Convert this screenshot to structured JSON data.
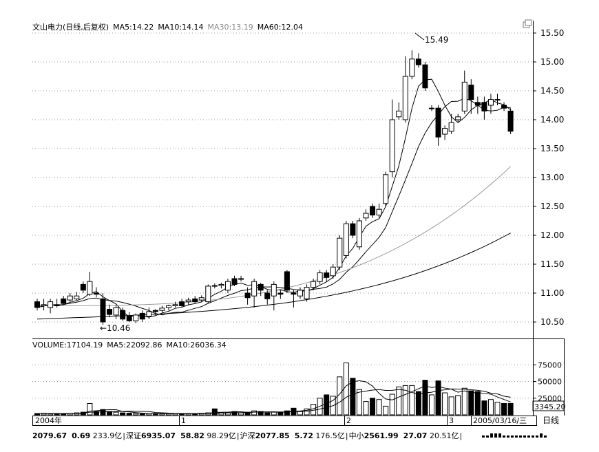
{
  "header": {
    "title": "文山电力(日线,后复权)",
    "ma5": "MA5:14.22",
    "ma10": "MA10:14.14",
    "ma30": "MA30:13.19",
    "ma60": "MA60:12.04"
  },
  "volume_header": {
    "volume": "VOLUME:17104.19",
    "ma5": "MA5:22092.86",
    "ma10": "MA10:26036.34"
  },
  "y_labels": [
    "15.50",
    "15.00",
    "14.50",
    "14.00",
    "13.50",
    "13.00",
    "12.50",
    "12.00",
    "11.50",
    "11.00",
    "10.50"
  ],
  "v_labels": [
    "75000",
    "50000",
    "25000"
  ],
  "v_current": "3345.20",
  "annotations": {
    "high": "15.49",
    "low": "←10.46"
  },
  "x_labels": [
    "2004年",
    "1",
    "2",
    "3",
    "2005/03/16/三"
  ],
  "period_label": "日线",
  "ticker": [
    {
      "a": "2079.67",
      "b": "0.69",
      "c": "233.9亿"
    },
    {
      "name": "深证",
      "a": "6935.07",
      "b": "58.82",
      "c": "98.29亿"
    },
    {
      "name": "沪深",
      "a": "2077.85",
      "b": "5.72",
      "c": "176.5亿"
    },
    {
      "name": "中小",
      "a": "2561.99",
      "b": "27.07",
      "c": "20.51亿"
    }
  ],
  "chart_data": {
    "type": "candlestick",
    "title": "文山电力(日线,后复权)",
    "ylim": [
      10.3,
      15.6
    ],
    "candles": [
      [
        10.85,
        10.75,
        10.9,
        10.7
      ],
      [
        10.78,
        10.8,
        10.9,
        10.7
      ],
      [
        10.75,
        10.85,
        10.9,
        10.65
      ],
      [
        10.8,
        10.78,
        10.9,
        10.75
      ],
      [
        10.9,
        10.82,
        10.95,
        10.8
      ],
      [
        10.88,
        10.95,
        11.0,
        10.85
      ],
      [
        10.9,
        10.95,
        11.02,
        10.88
      ],
      [
        11.15,
        11.05,
        11.2,
        11.0
      ],
      [
        10.98,
        11.2,
        11.37,
        10.95
      ],
      [
        11.0,
        10.98,
        11.1,
        10.93
      ],
      [
        10.9,
        10.5,
        11.0,
        10.45
      ],
      [
        10.72,
        10.63,
        10.8,
        10.58
      ],
      [
        10.62,
        10.75,
        10.8,
        10.55
      ],
      [
        10.7,
        10.55,
        10.75,
        10.52
      ],
      [
        10.6,
        10.52,
        10.67,
        10.5
      ],
      [
        10.52,
        10.62,
        10.65,
        10.48
      ],
      [
        10.65,
        10.55,
        10.7,
        10.5
      ],
      [
        10.6,
        10.68,
        10.75,
        10.55
      ],
      [
        10.7,
        10.68,
        10.72,
        10.62
      ],
      [
        10.7,
        10.74,
        10.78,
        10.65
      ],
      [
        10.75,
        10.78,
        10.8,
        10.7
      ],
      [
        10.78,
        10.8,
        10.85,
        10.75
      ],
      [
        10.85,
        10.78,
        10.9,
        10.75
      ],
      [
        10.85,
        10.88,
        10.92,
        10.8
      ],
      [
        10.9,
        10.85,
        10.95,
        10.82
      ],
      [
        10.88,
        10.92,
        10.96,
        10.85
      ],
      [
        10.85,
        11.12,
        11.15,
        10.82
      ],
      [
        11.13,
        11.12,
        11.17,
        11.08
      ],
      [
        11.13,
        11.15,
        11.18,
        11.08
      ],
      [
        11.05,
        11.2,
        11.25,
        11.0
      ],
      [
        11.25,
        11.15,
        11.3,
        11.12
      ],
      [
        11.25,
        11.25,
        11.3,
        11.2
      ],
      [
        11.0,
        10.92,
        11.1,
        10.8
      ],
      [
        10.95,
        11.2,
        11.25,
        10.75
      ],
      [
        11.15,
        11.05,
        11.18,
        10.95
      ],
      [
        11.0,
        10.9,
        11.05,
        10.8
      ],
      [
        10.95,
        11.15,
        11.2,
        10.7
      ],
      [
        11.0,
        10.98,
        11.05,
        10.9
      ],
      [
        11.37,
        11.05,
        11.4,
        11.0
      ],
      [
        11.0,
        10.98,
        11.05,
        10.75
      ],
      [
        10.95,
        11.05,
        11.1,
        10.9
      ],
      [
        10.9,
        11.1,
        11.15,
        10.85
      ],
      [
        11.1,
        11.2,
        11.25,
        11.05
      ],
      [
        11.2,
        11.35,
        11.4,
        11.15
      ],
      [
        11.35,
        11.27,
        11.4,
        11.2
      ],
      [
        11.3,
        11.45,
        11.5,
        11.25
      ],
      [
        11.45,
        11.95,
        12.0,
        11.4
      ],
      [
        11.65,
        12.2,
        12.25,
        11.6
      ],
      [
        12.2,
        12.0,
        12.25,
        11.95
      ],
      [
        11.8,
        12.25,
        12.3,
        11.75
      ],
      [
        12.3,
        12.38,
        12.45,
        12.25
      ],
      [
        12.5,
        12.35,
        12.55,
        12.3
      ],
      [
        12.35,
        12.45,
        12.55,
        12.3
      ],
      [
        12.55,
        13.05,
        13.1,
        12.5
      ],
      [
        13.1,
        14.0,
        14.35,
        13.0
      ],
      [
        14.05,
        14.15,
        14.3,
        14.0
      ],
      [
        14.0,
        14.75,
        15.1,
        13.95
      ],
      [
        14.75,
        15.05,
        15.2,
        14.7
      ],
      [
        15.05,
        14.95,
        15.15,
        14.9
      ],
      [
        14.95,
        14.55,
        15.0,
        14.5
      ],
      [
        14.2,
        14.2,
        14.25,
        14.15
      ],
      [
        14.2,
        13.7,
        14.25,
        13.55
      ],
      [
        13.75,
        13.85,
        13.9,
        13.65
      ],
      [
        13.8,
        13.95,
        14.1,
        13.75
      ],
      [
        14.0,
        14.05,
        14.1,
        13.95
      ],
      [
        14.15,
        14.65,
        14.85,
        14.1
      ],
      [
        14.6,
        14.35,
        14.7,
        14.1
      ],
      [
        14.3,
        14.25,
        14.4,
        14.1
      ],
      [
        14.3,
        14.15,
        14.4,
        14.0
      ],
      [
        14.25,
        14.35,
        14.45,
        14.1
      ],
      [
        14.35,
        14.35,
        14.45,
        14.25
      ],
      [
        14.25,
        14.2,
        14.3,
        14.15
      ],
      [
        14.15,
        13.8,
        14.2,
        13.75
      ]
    ],
    "high_annotation": 15.49,
    "low_annotation": 10.46
  }
}
